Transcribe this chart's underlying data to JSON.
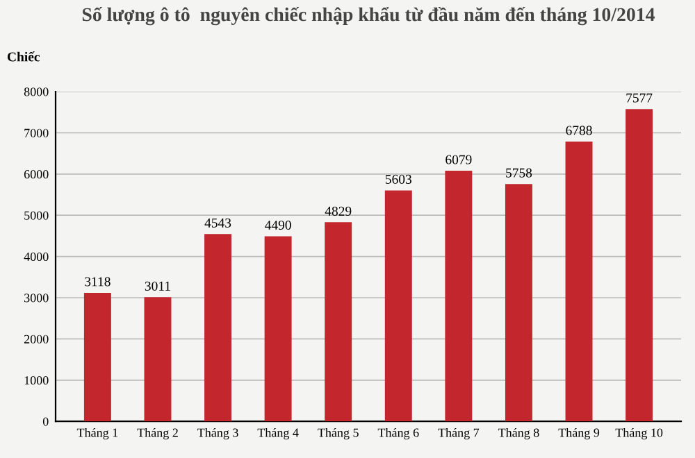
{
  "chart_data": {
    "type": "bar",
    "title": "Số lượng ô tô  nguyên chiếc nhập khẩu từ đầu năm đến tháng 10/2014",
    "ylabel": "Chiếc",
    "categories": [
      "Tháng 1",
      "Tháng 2",
      "Tháng 3",
      "Tháng 4",
      "Tháng 5",
      "Tháng 6",
      "Tháng 7",
      "Tháng 8",
      "Tháng 9",
      "Tháng 10"
    ],
    "values": [
      3118,
      3011,
      4543,
      4490,
      4829,
      5603,
      6079,
      5758,
      6788,
      7577
    ],
    "color": "#c4262e",
    "ylim": [
      0,
      8000
    ],
    "yticks": [
      0,
      1000,
      2000,
      3000,
      4000,
      5000,
      6000,
      7000,
      8000
    ],
    "grid": "y",
    "data_labels": true,
    "legend": false
  }
}
